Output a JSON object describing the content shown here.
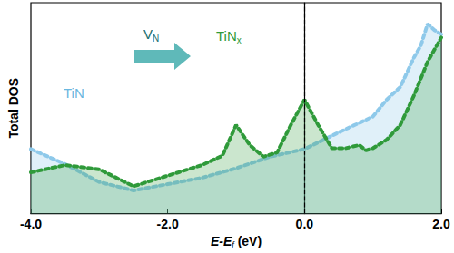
{
  "chart_data": {
    "type": "line",
    "xlabel": {
      "main": "E-E",
      "sub": "f",
      "after": " (eV)"
    },
    "ylabel": "Total DOS",
    "xlim": [
      -4,
      2
    ],
    "xticks": [
      {
        "value": -4,
        "label": "-4.0"
      },
      {
        "value": -2,
        "label": "-2.0"
      },
      {
        "value": 0,
        "label": "0.0"
      },
      {
        "value": 2,
        "label": "2.0"
      }
    ],
    "ylim": [
      0,
      10
    ],
    "yticks": [],
    "tick_labels": "x",
    "grid": false,
    "line_style": "dotted",
    "reference_line": {
      "x": 0
    },
    "annotations": [
      {
        "main": "TiN",
        "sub": "",
        "color": "#6ab7e0"
      },
      {
        "main": "V",
        "sub": "N",
        "color": "#1a6e6e"
      },
      {
        "main": "TiN",
        "sub": "x",
        "color": "#2f9a3a"
      }
    ],
    "series": [
      {
        "name": "TiN",
        "color": "#8ec9ea",
        "x": [
          -4.0,
          -3.5,
          -3.0,
          -2.5,
          -2.0,
          -1.5,
          -1.0,
          -0.5,
          0.0,
          0.5,
          1.0,
          1.2,
          1.4,
          1.6,
          1.7,
          1.8,
          1.9,
          2.0
        ],
        "values": [
          3.06,
          2.35,
          1.5,
          1.1,
          1.4,
          1.7,
          2.15,
          2.7,
          3.06,
          3.85,
          4.6,
          5.4,
          6.0,
          7.4,
          7.96,
          9.0,
          8.7,
          8.5
        ]
      },
      {
        "name": "TiNx",
        "color": "#2f9a3a",
        "x": [
          -4.0,
          -3.5,
          -3.0,
          -2.5,
          -2.2,
          -2.0,
          -1.5,
          -1.2,
          -1.0,
          -0.8,
          -0.6,
          -0.4,
          -0.2,
          0.0,
          0.2,
          0.4,
          0.6,
          0.8,
          0.9,
          1.0,
          1.2,
          1.4,
          1.6,
          1.8,
          2.0
        ],
        "values": [
          1.96,
          2.3,
          2.1,
          1.3,
          1.6,
          1.8,
          2.3,
          2.75,
          4.2,
          3.25,
          2.7,
          2.9,
          4.2,
          5.4,
          4.2,
          3.1,
          3.1,
          3.25,
          3.0,
          3.1,
          3.5,
          4.2,
          5.6,
          7.2,
          8.35
        ]
      }
    ]
  }
}
